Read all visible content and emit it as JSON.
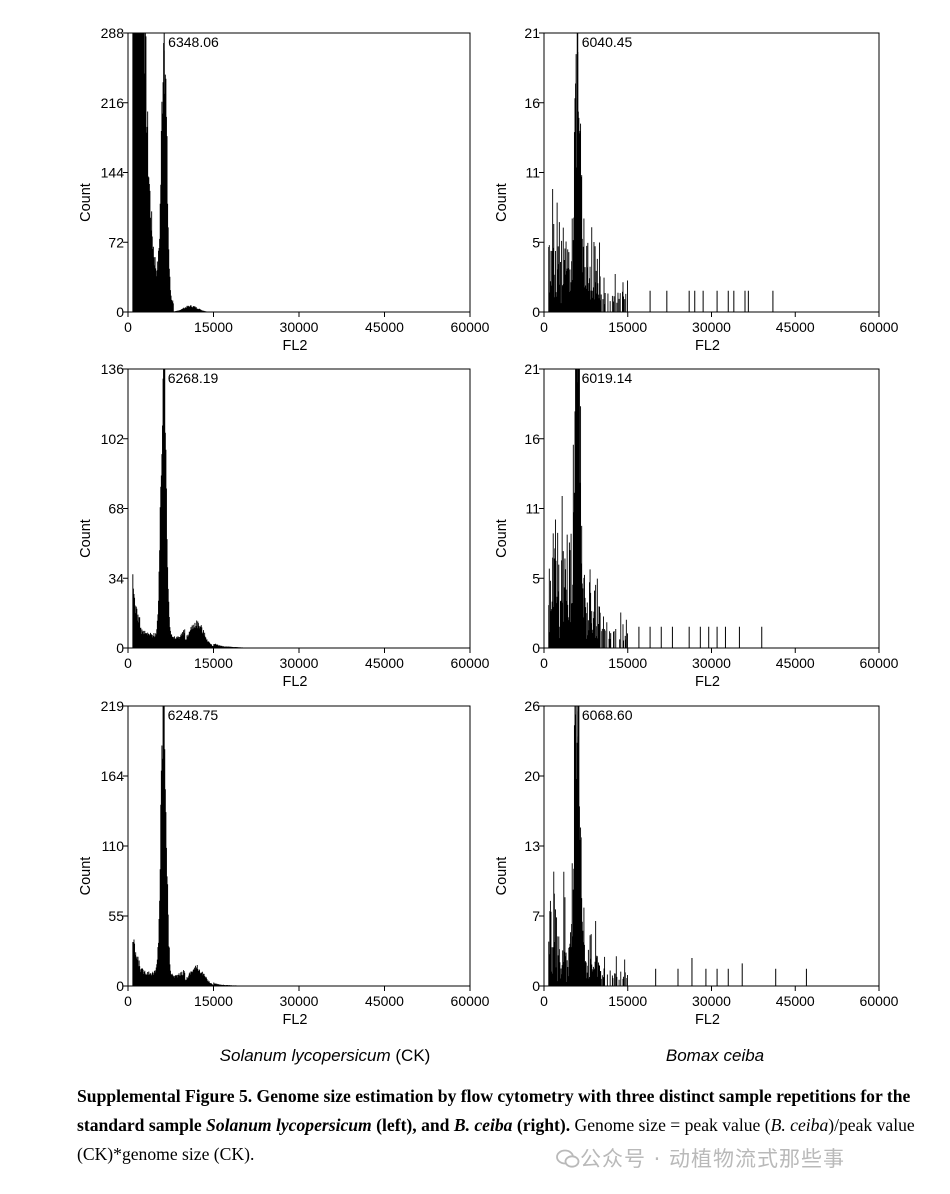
{
  "chart_data": [
    {
      "type": "histogram",
      "panel": "top-left",
      "xlabel": "FL2",
      "ylabel": "Count",
      "xlim": [
        0,
        60000
      ],
      "ylim": [
        0,
        288
      ],
      "xticks": [
        "0",
        "15000",
        "30000",
        "45000",
        "60000"
      ],
      "yticks": [
        "0",
        "72",
        "144",
        "216",
        "288"
      ],
      "peak_label": "6348.06",
      "peak_x": 6348.06,
      "peak_height": 270,
      "shoulder": [
        0,
        5000
      ],
      "g2_region": [
        8000,
        15000
      ],
      "g2_height": 6,
      "max_x": 15000,
      "outliers": [],
      "noise": 0.55
    },
    {
      "type": "histogram",
      "panel": "top-right",
      "xlabel": "FL2",
      "ylabel": "Count",
      "xlim": [
        0,
        60000
      ],
      "ylim": [
        0,
        21
      ],
      "xticks": [
        "0",
        "15000",
        "30000",
        "45000",
        "60000"
      ],
      "yticks": [
        "0",
        "5",
        "11",
        "16",
        "21"
      ],
      "peak_label": "6040.45",
      "peak_x": 6040.45,
      "peak_height": 19.5,
      "shoulder": [
        2000,
        6
      ],
      "g2_region": [
        8000,
        15000
      ],
      "g2_height": 1.5,
      "max_x": 15000,
      "outliers": [
        [
          19000,
          1
        ],
        [
          22000,
          1
        ],
        [
          26000,
          1
        ],
        [
          27000,
          1
        ],
        [
          28500,
          1
        ],
        [
          31000,
          1
        ],
        [
          33000,
          1
        ],
        [
          34000,
          1
        ],
        [
          36000,
          1
        ],
        [
          36600,
          1
        ],
        [
          41000,
          1
        ]
      ],
      "noise": 0.9
    },
    {
      "type": "histogram",
      "panel": "middle-left",
      "xlabel": "FL2",
      "ylabel": "Count",
      "xlim": [
        0,
        60000
      ],
      "ylim": [
        0,
        136
      ],
      "xticks": [
        "0",
        "15000",
        "30000",
        "45000",
        "60000"
      ],
      "yticks": [
        "0",
        "34",
        "68",
        "102",
        "136"
      ],
      "peak_label": "6268.19",
      "peak_x": 6268.19,
      "peak_height": 134,
      "shoulder": [
        0,
        27
      ],
      "g2_region": [
        10000,
        15000
      ],
      "g2_height": 12,
      "max_x": 26000,
      "outliers": [],
      "noise": 0.55
    },
    {
      "type": "histogram",
      "panel": "middle-right",
      "xlabel": "FL2",
      "ylabel": "Count",
      "xlim": [
        0,
        60000
      ],
      "ylim": [
        0,
        21
      ],
      "xticks": [
        "0",
        "15000",
        "30000",
        "45000",
        "60000"
      ],
      "yticks": [
        "0",
        "5",
        "11",
        "16",
        "21"
      ],
      "peak_label": "6019.14",
      "peak_x": 6019.14,
      "peak_height": 20,
      "shoulder": [
        2000,
        7
      ],
      "g2_region": [
        8000,
        15000
      ],
      "g2_height": 1.5,
      "max_x": 15000,
      "outliers": [
        [
          17000,
          1
        ],
        [
          19000,
          1
        ],
        [
          21000,
          1
        ],
        [
          23000,
          1
        ],
        [
          26000,
          1
        ],
        [
          28000,
          1
        ],
        [
          29500,
          1
        ],
        [
          31000,
          1
        ],
        [
          32500,
          1
        ],
        [
          35000,
          1
        ],
        [
          39000,
          1
        ]
      ],
      "noise": 0.9
    },
    {
      "type": "histogram",
      "panel": "bottom-left",
      "xlabel": "FL2",
      "ylabel": "Count",
      "xlim": [
        0,
        60000
      ],
      "ylim": [
        0,
        219
      ],
      "xticks": [
        "0",
        "15000",
        "30000",
        "45000",
        "60000"
      ],
      "yticks": [
        "0",
        "55",
        "110",
        "164",
        "219"
      ],
      "peak_label": "6248.75",
      "peak_x": 6248.75,
      "peak_height": 214,
      "shoulder": [
        1000,
        32
      ],
      "g2_region": [
        10000,
        15000
      ],
      "g2_height": 14,
      "max_x": 24000,
      "outliers": [],
      "noise": 0.55
    },
    {
      "type": "histogram",
      "panel": "bottom-right",
      "xlabel": "FL2",
      "ylabel": "Count",
      "xlim": [
        0,
        60000
      ],
      "ylim": [
        0,
        26
      ],
      "xticks": [
        "0",
        "15000",
        "30000",
        "45000",
        "60000"
      ],
      "yticks": [
        "0",
        "7",
        "13",
        "20",
        "26"
      ],
      "peak_label": "6068.60",
      "peak_x": 6068.6,
      "peak_height": 25.5,
      "shoulder": [
        2000,
        7
      ],
      "g2_region": [
        8000,
        15000
      ],
      "g2_height": 1.5,
      "max_x": 16000,
      "outliers": [
        [
          20000,
          1
        ],
        [
          24000,
          1
        ],
        [
          26500,
          2
        ],
        [
          29000,
          1
        ],
        [
          31000,
          1
        ],
        [
          33000,
          1
        ],
        [
          35500,
          1.5
        ],
        [
          41500,
          1
        ],
        [
          47000,
          1
        ]
      ],
      "noise": 0.9
    }
  ],
  "labels": {
    "left_species": "Solanum lycopersicum",
    "left_suffix": " (CK)",
    "right_species": "Bomax ceiba"
  },
  "caption": {
    "bold_a": "Supplemental Figure 5. Genome size estimation by flow cytometry with three distinct sample repetitions for the standard sample ",
    "bold_species": "Solanum lycopersicum",
    "bold_b": " (left), and ",
    "bold_species2": "B. ceiba",
    "bold_c": " (right).",
    "text_a": " Genome size = peak value (",
    "ital_a": "B. ceiba",
    "text_b": ")/peak value (CK)*genome size (CK)."
  },
  "watermark": "公众号 · 动植物流式那些事",
  "colors": {
    "bars": "#000000",
    "frame": "#000000",
    "watermark": "#b9b9b9"
  }
}
